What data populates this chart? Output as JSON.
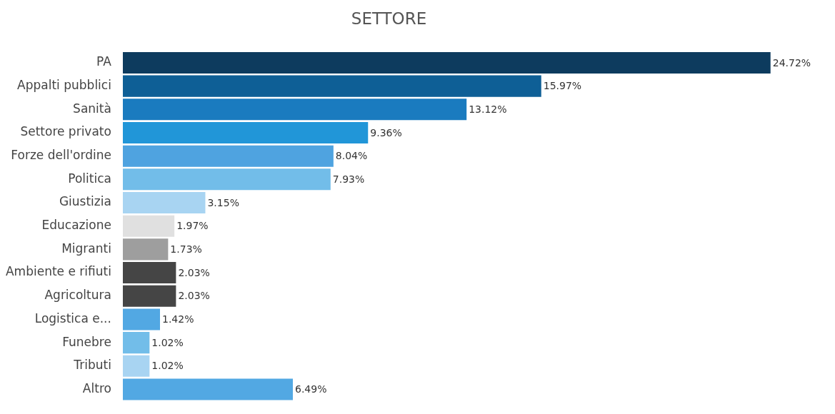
{
  "chart_data": {
    "type": "bar",
    "title": "SETTORE",
    "orientation": "horizontal",
    "categories": [
      "PA",
      "Appalti pubblici",
      "Sanità",
      "Settore privato",
      "Forze dell'ordine",
      "Politica",
      "Giustizia",
      "Educazione",
      "Migranti",
      "Ambiente e rifiuti",
      "Agricoltura",
      "Logistica e...",
      "Funebre",
      "Tributi",
      "Altro"
    ],
    "values": [
      24.72,
      15.97,
      13.12,
      9.36,
      8.04,
      7.93,
      3.15,
      1.97,
      1.73,
      2.03,
      2.03,
      1.42,
      1.02,
      1.02,
      6.49
    ],
    "value_labels": [
      "24.72%",
      "15.97%",
      "13.12%",
      "9.36%",
      "8.04%",
      "7.93%",
      "3.15%",
      "1.97%",
      "1.73%",
      "2.03%",
      "2.03%",
      "1.42%",
      "1.02%",
      "1.02%",
      "6.49%"
    ],
    "colors": [
      "#0d3b5e",
      "#0e5f96",
      "#1a7bbf",
      "#2196d8",
      "#4fa3e0",
      "#72bde9",
      "#a8d4f2",
      "#e0e0e0",
      "#9e9e9e",
      "#454545",
      "#454545",
      "#52a8e3",
      "#72bde9",
      "#a8d4f2",
      "#52a8e3"
    ],
    "legend": false
  }
}
